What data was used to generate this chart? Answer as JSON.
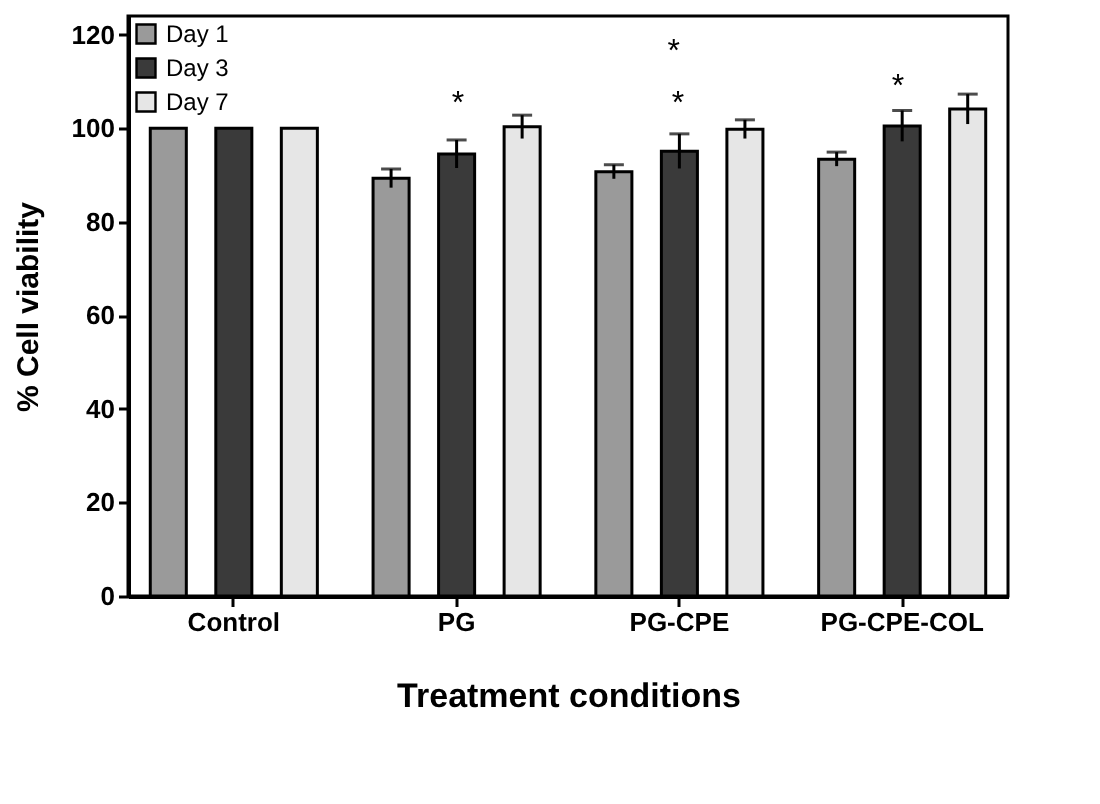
{
  "chart_data": {
    "type": "bar",
    "xlabel": "Treatment conditions",
    "ylabel": "% Cell viability",
    "categories": [
      "Control",
      "PG",
      "PG-CPE",
      "PG-CPE-COL"
    ],
    "series": [
      {
        "name": "Day 1",
        "color": "#9a9a9a",
        "values": [
          100,
          89.3,
          90.7,
          93.4
        ],
        "errors": [
          null,
          2,
          1.5,
          1.5
        ]
      },
      {
        "name": "Day 3",
        "color": "#3a3a3a",
        "values": [
          100,
          94.5,
          95.1,
          100.5
        ],
        "errors": [
          null,
          3,
          3.7,
          3.3
        ]
      },
      {
        "name": "Day 7",
        "color": "#e6e6e6",
        "values": [
          100,
          100.3,
          99.8,
          104.1
        ],
        "errors": [
          null,
          2.5,
          2,
          3.2
        ]
      }
    ],
    "ylim": [
      0,
      124
    ],
    "yticks": [
      0,
      20,
      40,
      60,
      80,
      100,
      120
    ],
    "grid": false,
    "legend": "top left",
    "annotations": [
      "*",
      "*",
      "*",
      "*"
    ]
  }
}
